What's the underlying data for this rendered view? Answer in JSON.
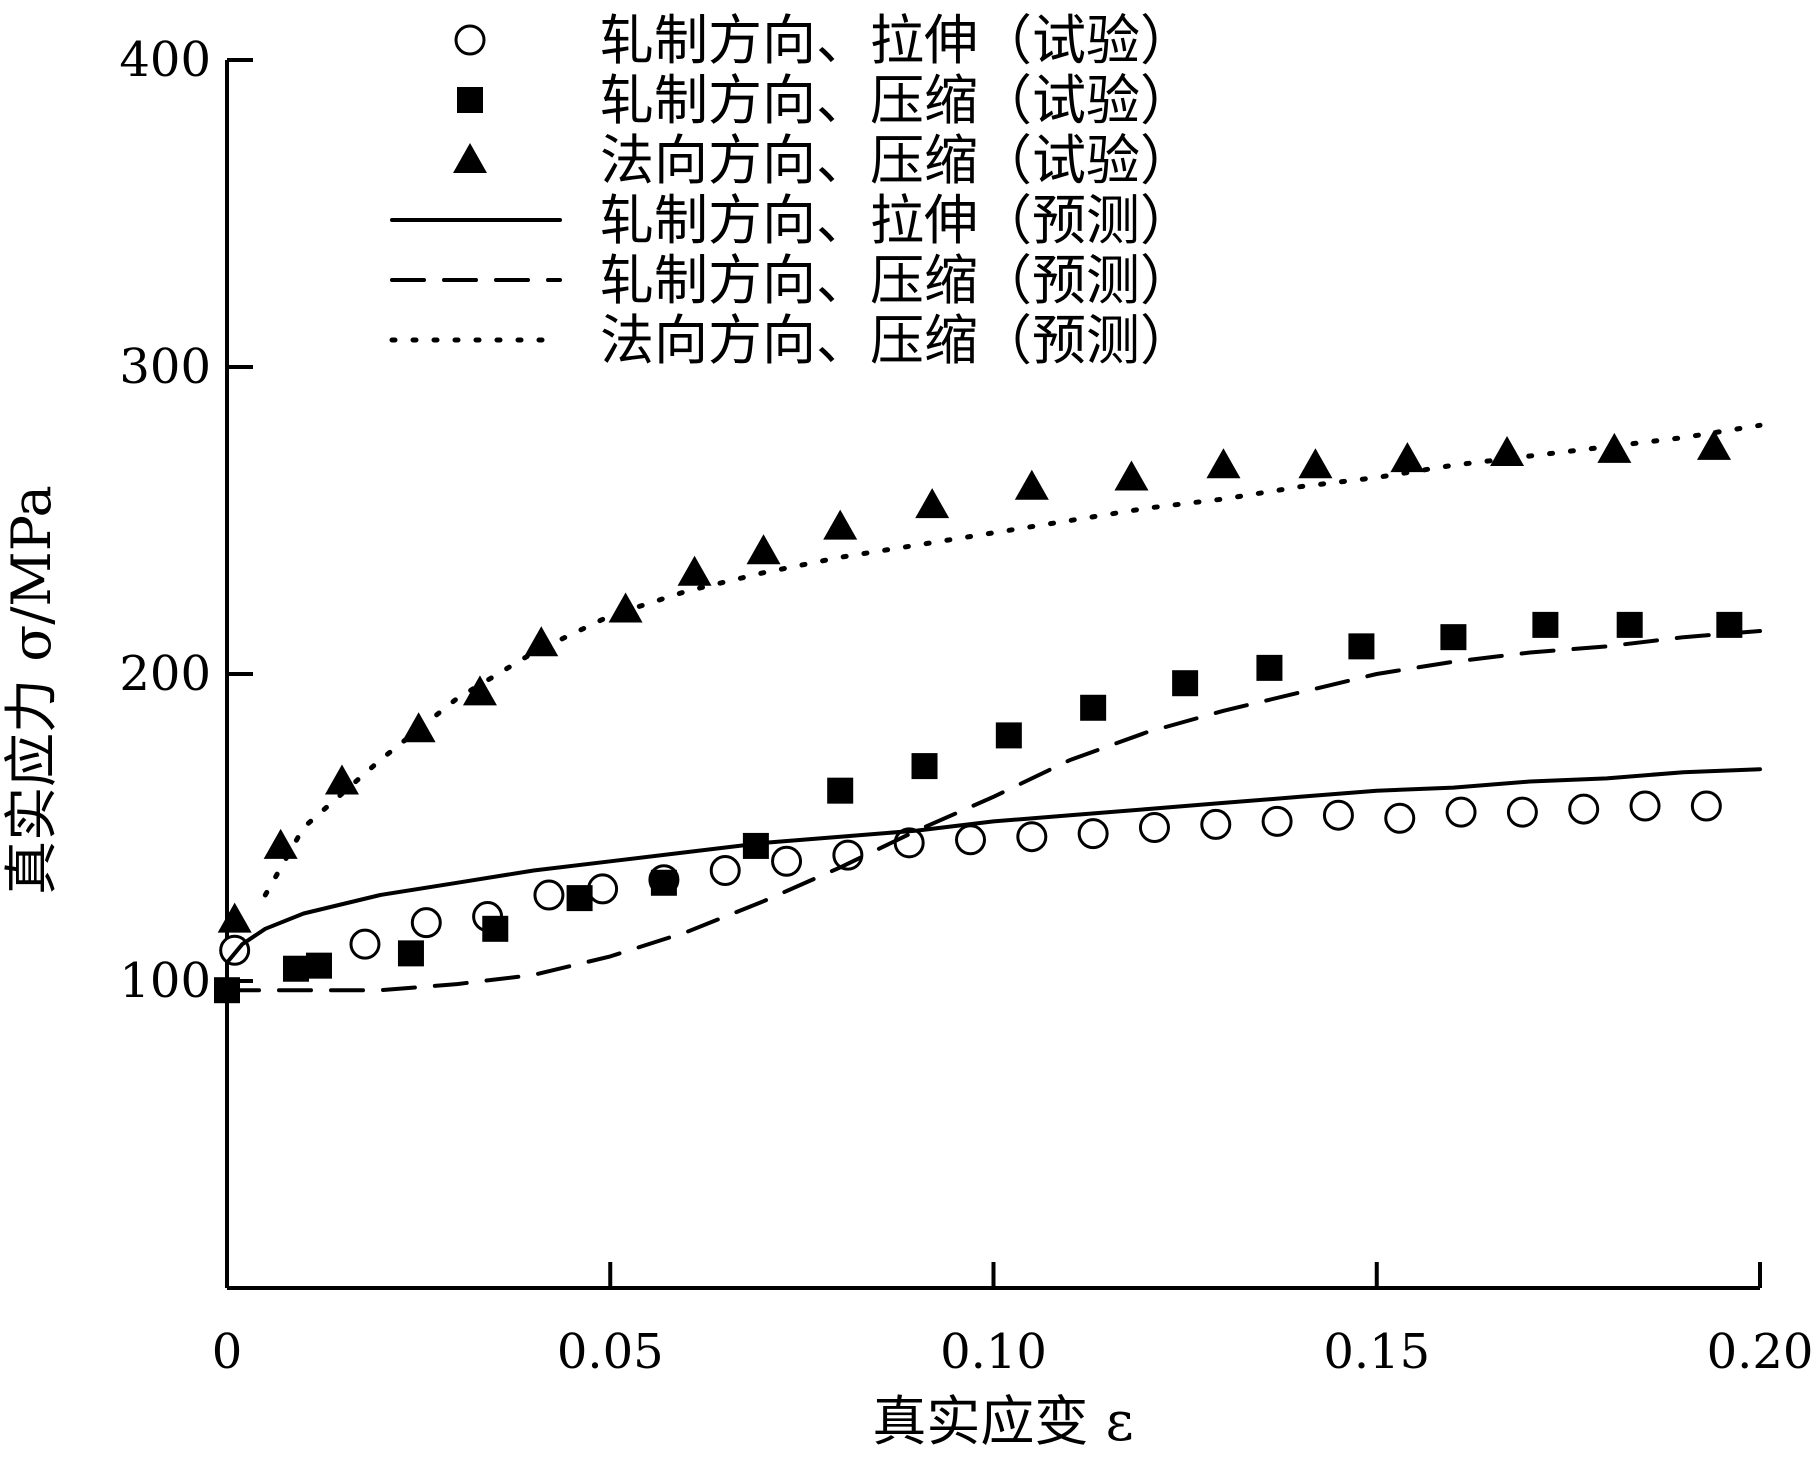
{
  "chart_data": {
    "type": "scatter",
    "title": "",
    "xlabel": "真实应变 ε",
    "ylabel": "真实应力 σ/MPa",
    "xlim": [
      0,
      0.2
    ],
    "ylim": [
      0,
      400
    ],
    "x_ticks": [
      0,
      0.05,
      0.1,
      0.15,
      0.2
    ],
    "x_tick_labels": [
      "0",
      "0.05",
      "0.10",
      "0.15",
      "0.20"
    ],
    "y_ticks": [
      100,
      200,
      300,
      400
    ],
    "y_tick_labels": [
      "100",
      "200",
      "300",
      "400"
    ],
    "grid": false,
    "legend_position": "top-center",
    "series": [
      {
        "name": "轧制方向、拉伸（试验）",
        "kind": "scatter",
        "marker": "open-circle",
        "x": [
          0.001,
          0.018,
          0.026,
          0.034,
          0.042,
          0.049,
          0.057,
          0.065,
          0.073,
          0.081,
          0.089,
          0.097,
          0.105,
          0.113,
          0.121,
          0.129,
          0.137,
          0.145,
          0.153,
          0.161,
          0.169,
          0.177,
          0.185,
          0.193
        ],
        "y": [
          110,
          112,
          119,
          121,
          128,
          130,
          133,
          136,
          139,
          141,
          145,
          146,
          147,
          148,
          150,
          151,
          152,
          154,
          153,
          155,
          155,
          156,
          157,
          157
        ]
      },
      {
        "name": "轧制方向、压缩（试验）",
        "kind": "scatter",
        "marker": "filled-square",
        "x": [
          0.0,
          0.009,
          0.012,
          0.024,
          0.035,
          0.046,
          0.057,
          0.069,
          0.08,
          0.091,
          0.102,
          0.113,
          0.125,
          0.136,
          0.148,
          0.16,
          0.172,
          0.183,
          0.196
        ],
        "y": [
          97,
          104,
          105,
          109,
          117,
          127,
          132,
          144,
          162,
          170,
          180,
          189,
          197,
          202,
          209,
          212,
          216,
          216,
          216
        ]
      },
      {
        "name": "法向方向、压缩（试验）",
        "kind": "scatter",
        "marker": "filled-triangle",
        "x": [
          0.001,
          0.007,
          0.015,
          0.025,
          0.033,
          0.041,
          0.052,
          0.061,
          0.07,
          0.08,
          0.092,
          0.105,
          0.118,
          0.13,
          0.142,
          0.154,
          0.167,
          0.181,
          0.194
        ],
        "y": [
          120,
          144,
          165,
          182,
          194,
          210,
          221,
          233,
          240,
          248,
          255,
          261,
          264,
          268,
          268,
          270,
          272,
          273,
          274
        ]
      },
      {
        "name": "轧制方向、拉伸（预测）",
        "kind": "line",
        "style": "solid",
        "x": [
          0.0,
          0.002,
          0.005,
          0.01,
          0.02,
          0.03,
          0.04,
          0.05,
          0.06,
          0.07,
          0.08,
          0.09,
          0.1,
          0.11,
          0.12,
          0.13,
          0.14,
          0.15,
          0.16,
          0.17,
          0.18,
          0.19,
          0.2
        ],
        "y": [
          106,
          112,
          117,
          122,
          128,
          132,
          136,
          139,
          142,
          145,
          147,
          149,
          152,
          154,
          156,
          158,
          160,
          162,
          163,
          165,
          166,
          168,
          169
        ]
      },
      {
        "name": "轧制方向、压缩（预测）",
        "kind": "line",
        "style": "dashed",
        "x": [
          0.0,
          0.01,
          0.02,
          0.03,
          0.04,
          0.05,
          0.06,
          0.07,
          0.08,
          0.09,
          0.1,
          0.11,
          0.12,
          0.13,
          0.14,
          0.15,
          0.16,
          0.17,
          0.18,
          0.19,
          0.2
        ],
        "y": [
          97,
          97,
          97,
          99,
          102,
          108,
          116,
          126,
          137,
          149,
          160,
          172,
          181,
          188,
          194,
          200,
          204,
          207,
          209,
          212,
          214
        ]
      },
      {
        "name": "法向方向、压缩（预测）",
        "kind": "line",
        "style": "dotted",
        "x": [
          0.005,
          0.01,
          0.02,
          0.03,
          0.04,
          0.05,
          0.06,
          0.07,
          0.08,
          0.09,
          0.1,
          0.11,
          0.12,
          0.13,
          0.14,
          0.15,
          0.16,
          0.17,
          0.18,
          0.19,
          0.2
        ],
        "y": [
          128,
          150,
          172,
          192,
          207,
          219,
          227,
          233,
          238,
          242,
          246,
          250,
          254,
          257,
          261,
          264,
          268,
          271,
          274,
          277,
          281
        ]
      }
    ]
  }
}
